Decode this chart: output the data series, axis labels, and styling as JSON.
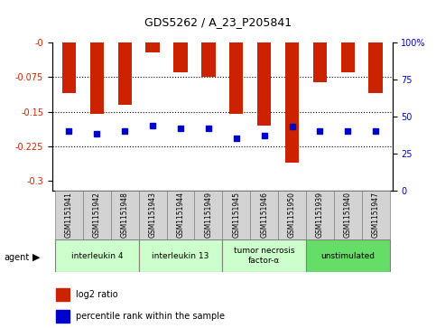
{
  "title": "GDS5262 / A_23_P205841",
  "samples": [
    "GSM1151941",
    "GSM1151942",
    "GSM1151948",
    "GSM1151943",
    "GSM1151944",
    "GSM1151949",
    "GSM1151945",
    "GSM1151946",
    "GSM1151950",
    "GSM1151939",
    "GSM1151940",
    "GSM1151947"
  ],
  "log2_ratio": [
    -0.11,
    -0.155,
    -0.135,
    -0.022,
    -0.065,
    -0.075,
    -0.155,
    -0.18,
    -0.26,
    -0.085,
    -0.065,
    -0.11
  ],
  "percentile_rank": [
    40,
    38,
    40,
    44,
    42,
    42,
    35,
    37,
    43,
    40,
    40,
    40
  ],
  "bar_color": "#cc2200",
  "dot_color": "#0000cc",
  "ylim_left": [
    -0.32,
    0.0
  ],
  "ylim_right": [
    0,
    100
  ],
  "yticks_left": [
    0.0,
    -0.075,
    -0.15,
    -0.225,
    -0.3
  ],
  "ytick_labels_left": [
    "-0",
    "-0.075",
    "-0.15",
    "-0.225",
    "-0.3"
  ],
  "yticks_right": [
    0,
    25,
    50,
    75,
    100
  ],
  "ytick_labels_right": [
    "0",
    "25",
    "50",
    "75",
    "100%"
  ],
  "groups": [
    {
      "label": "interleukin 4",
      "start": 0,
      "end": 3,
      "color": "#ccffcc"
    },
    {
      "label": "interleukin 13",
      "start": 3,
      "end": 6,
      "color": "#ccffcc"
    },
    {
      "label": "tumor necrosis\nfactor-α",
      "start": 6,
      "end": 9,
      "color": "#ccffcc"
    },
    {
      "label": "unstimulated",
      "start": 9,
      "end": 12,
      "color": "#66dd66"
    }
  ],
  "agent_label": "agent",
  "legend_bar_label": "log2 ratio",
  "legend_dot_label": "percentile rank within the sample",
  "background_color": "#ffffff",
  "plot_bg_color": "#ffffff",
  "tick_label_bg_color": "#d3d3d3",
  "grid_color": "#000000",
  "bar_width": 0.5
}
